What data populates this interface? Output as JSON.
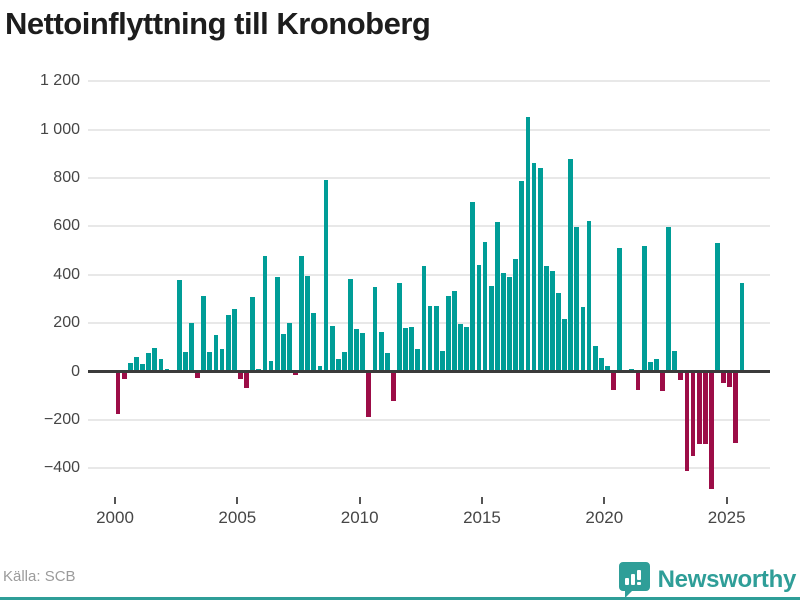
{
  "header": {
    "title": "Nettoinflyttning till Kronoberg"
  },
  "footer": {
    "source": "Källa: SCB",
    "brand": "Newsworthy"
  },
  "colors": {
    "positive": "#009d97",
    "negative": "#9c0d47",
    "brand": "#2f9e98",
    "grid": "#e8e8e8",
    "axis": "#3b3b3b",
    "label": "#464646",
    "muted": "#9b9b9b"
  },
  "chart_data": {
    "type": "bar",
    "title": "Nettoinflyttning till Kronoberg",
    "xlabel": "",
    "ylabel": "",
    "period": "quarterly",
    "x_start": "2000-Q1",
    "x_end": "2025-Q3",
    "x_tick_years": [
      2000,
      2005,
      2010,
      2015,
      2020,
      2025
    ],
    "x_tick_labels": [
      "2000",
      "2005",
      "2010",
      "2015",
      "2020",
      "2025"
    ],
    "y_ticks": [
      1200,
      1000,
      800,
      600,
      400,
      200,
      0,
      -200,
      -400
    ],
    "y_tick_labels": [
      "1 200",
      "1 000",
      "800",
      "600",
      "400",
      "200",
      "0",
      "−200",
      "−400"
    ],
    "ylim": [
      -520,
      1240
    ],
    "grid": true,
    "legend": false,
    "series": [
      {
        "name": "Nettoinflyttning",
        "values": [
          -175,
          -30,
          35,
          62,
          30,
          76,
          97,
          53,
          10,
          0,
          378,
          79,
          200,
          -25,
          314,
          80,
          150,
          92,
          232,
          258,
          -30,
          -70,
          307,
          11,
          477,
          44,
          391,
          155,
          202,
          -15,
          477,
          396,
          242,
          21,
          792,
          190,
          50,
          80,
          384,
          177,
          158,
          -190,
          350,
          165,
          76,
          -120,
          366,
          180,
          186,
          95,
          435,
          271,
          269,
          84,
          313,
          334,
          198,
          186,
          700,
          441,
          536,
          352,
          618,
          409,
          389,
          466,
          786,
          1051,
          864,
          840,
          438,
          415,
          326,
          219,
          877,
          599,
          265,
          624,
          106,
          55,
          21,
          -75,
          510,
          0,
          11,
          -75,
          520,
          41,
          51,
          -82,
          597,
          84,
          -35,
          -411,
          -351,
          -299,
          -301,
          -486,
          530,
          -46,
          -66,
          -295,
          365
        ]
      }
    ]
  }
}
